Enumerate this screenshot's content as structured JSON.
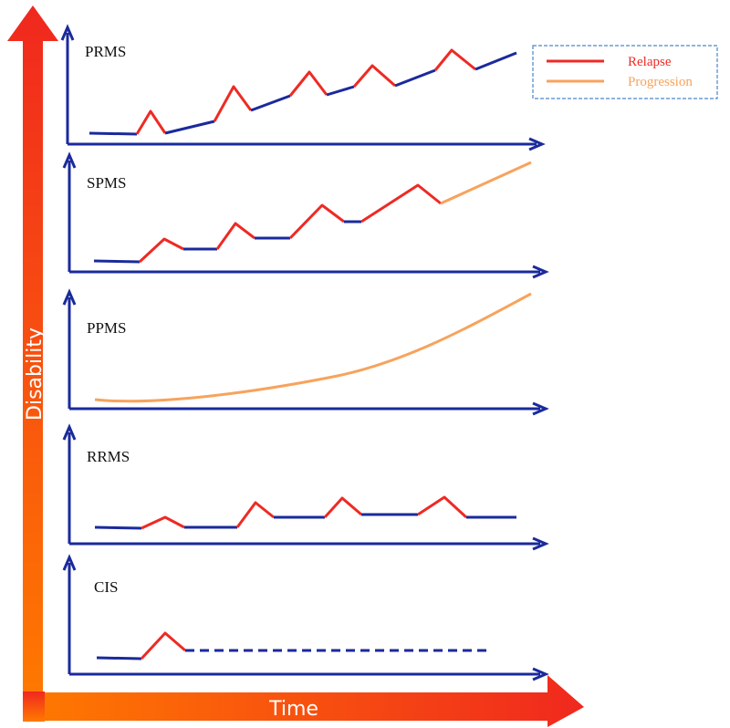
{
  "axes": {
    "y_label": "Disability",
    "x_label": "Time"
  },
  "legend": {
    "items": [
      {
        "label": "Relapse",
        "color": "#ee2a24"
      },
      {
        "label": "Progression",
        "color": "#f7a35c"
      }
    ],
    "border_color": "#4a86c8"
  },
  "colors": {
    "baseline": "#1a2a9c",
    "axis": "#1a2a9c",
    "relapse": "#ee2a24",
    "progression": "#f7a35c",
    "arrow_gradient_start": "#ff7a00",
    "arrow_gradient_end": "#f0281e"
  },
  "panels": [
    {
      "id": "prms",
      "label": "PRMS"
    },
    {
      "id": "spms",
      "label": "SPMS"
    },
    {
      "id": "ppms",
      "label": "PPMS"
    },
    {
      "id": "rrms",
      "label": "RRMS"
    },
    {
      "id": "cis",
      "label": "CIS"
    }
  ]
}
